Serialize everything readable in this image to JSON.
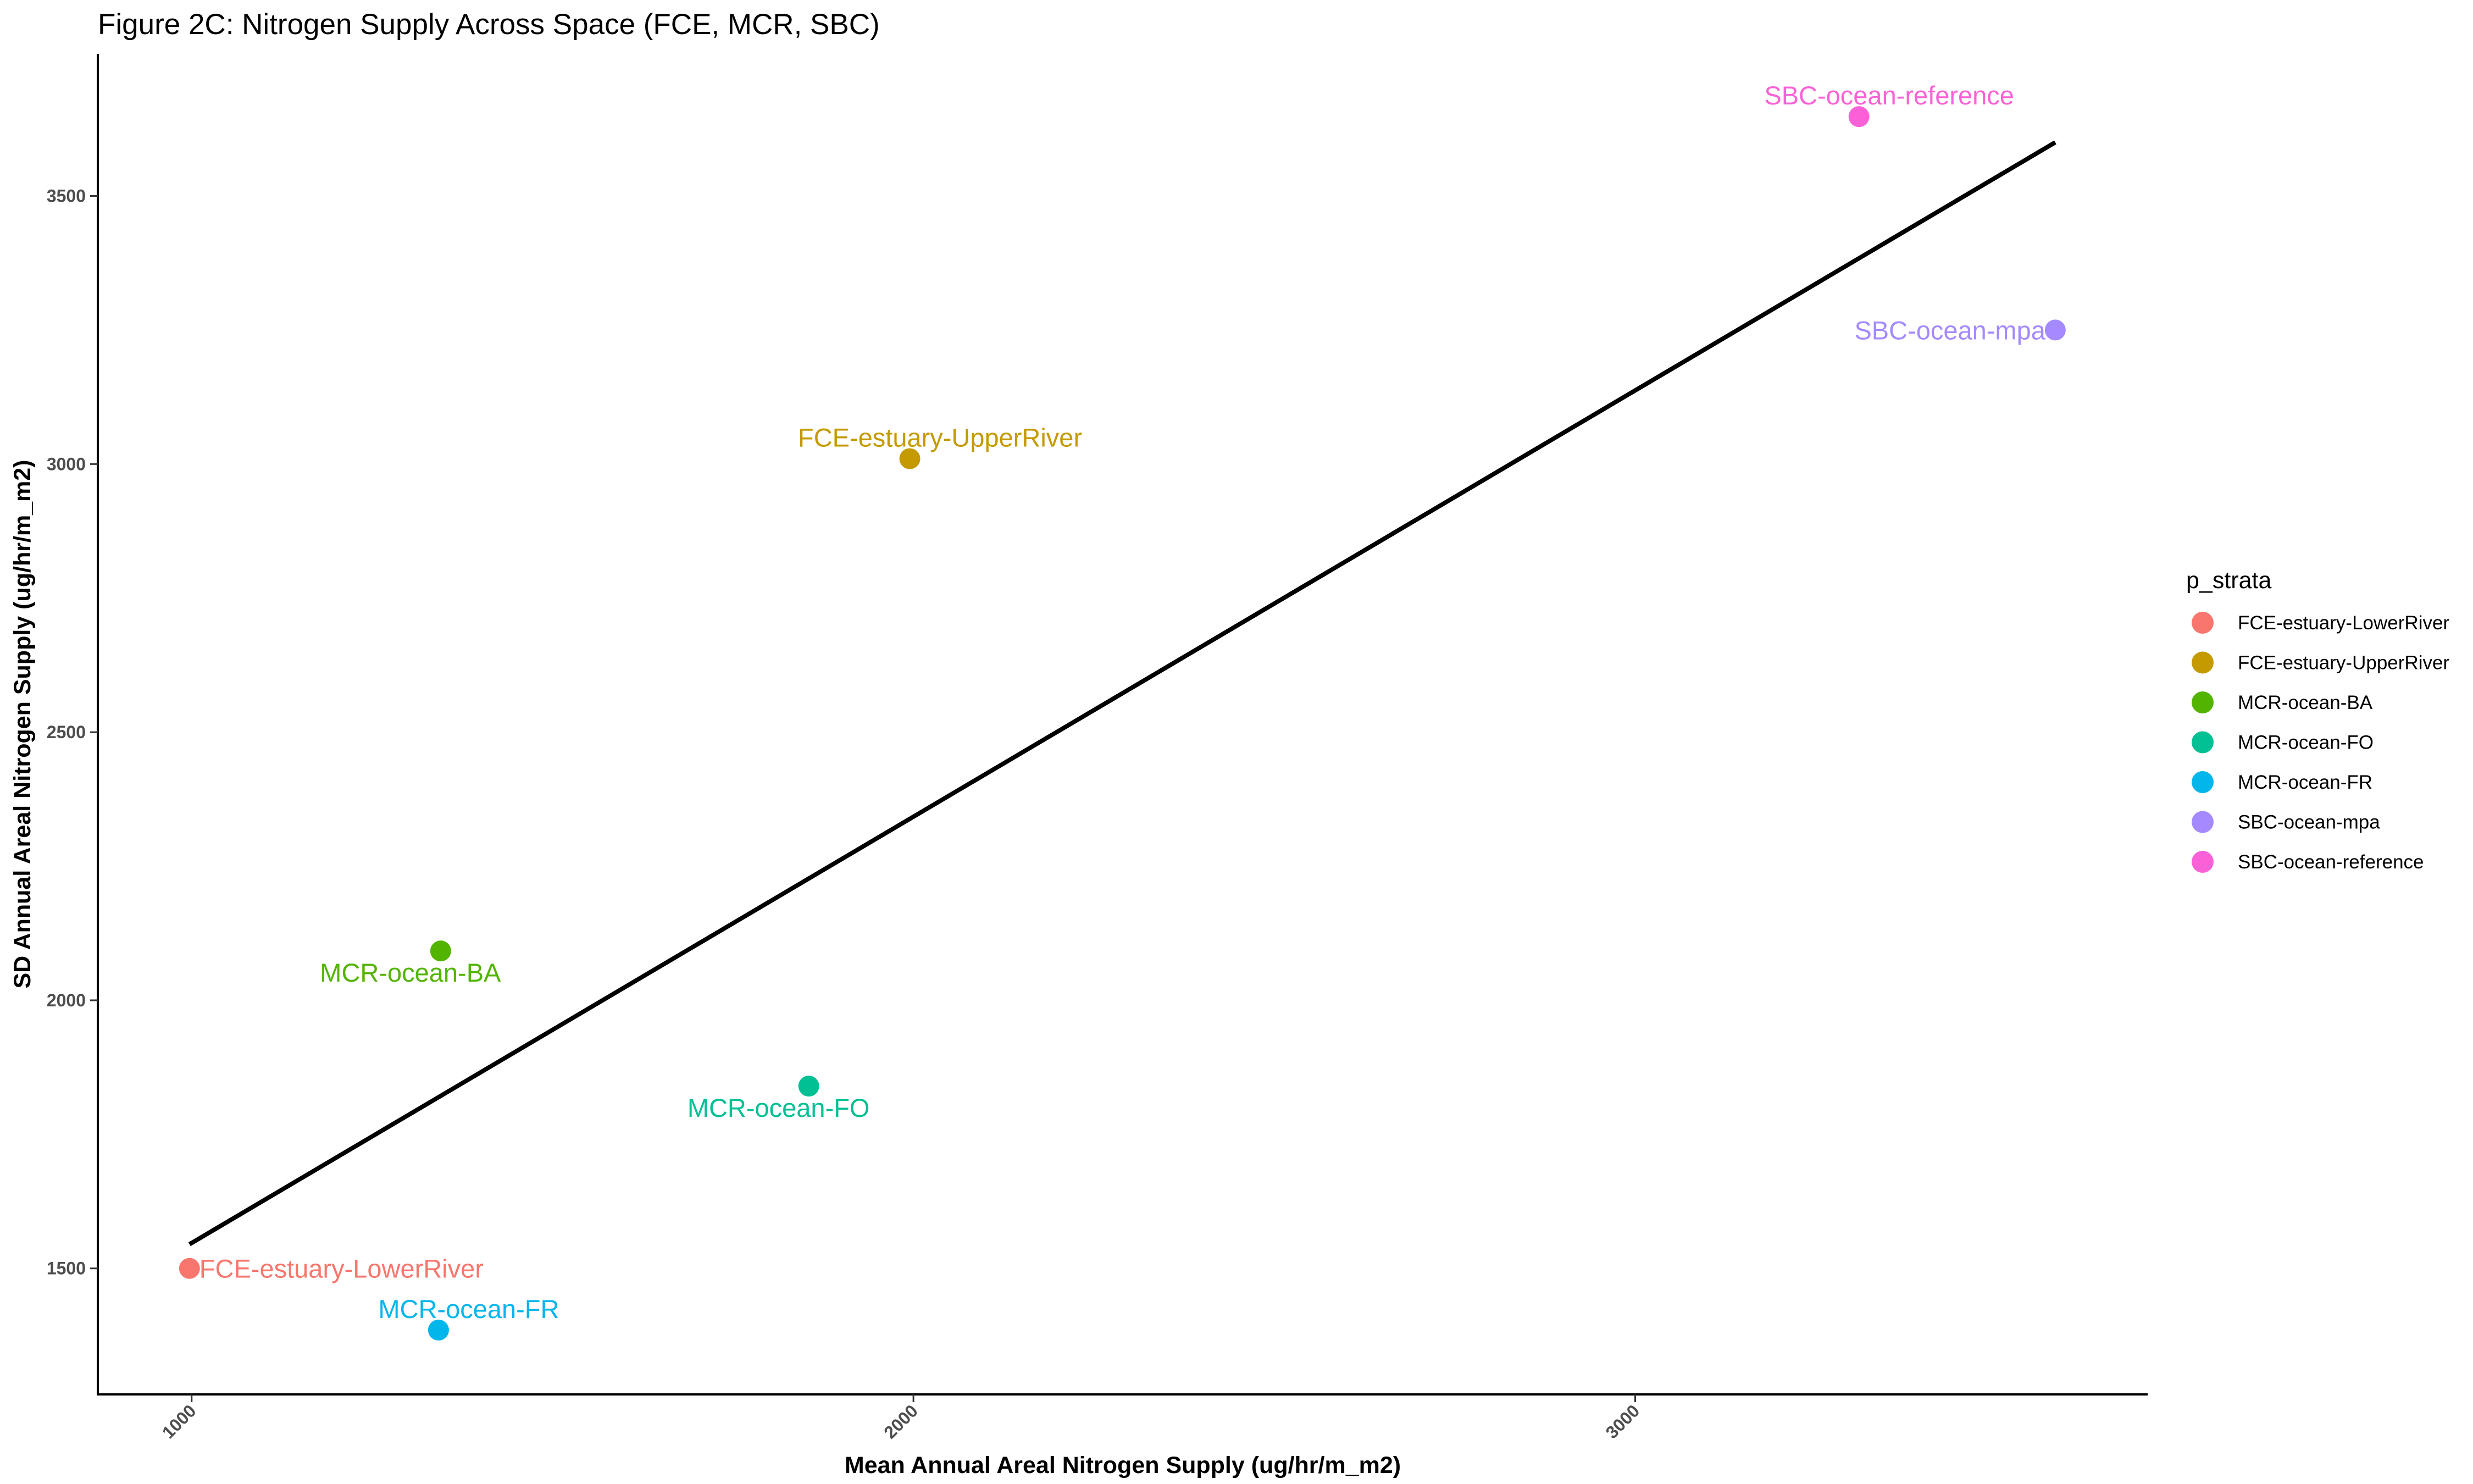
{
  "chart_data": {
    "type": "scatter",
    "title": "Figure 2C: Nitrogen Supply Across Space (FCE, MCR, SBC)",
    "xlabel": "Mean Annual Areal Nitrogen Supply (ug/hr/m_m2)",
    "ylabel": "SD Annual Areal Nitrogen Supply (ug/hr/m_m2)",
    "xlim": [
      870,
      3710
    ],
    "ylim": [
      1265,
      3765
    ],
    "x_ticks": [
      "1000",
      "2000",
      "3000"
    ],
    "y_ticks": [
      "1500",
      "2000",
      "2500",
      "3000",
      "3500"
    ],
    "grid": false,
    "legend_title": "p_strata",
    "legend_position": "right",
    "series": [
      {
        "name": "FCE-estuary-LowerRiver",
        "color": "#F8766D",
        "x": 997,
        "y": 1500,
        "label_side": "right"
      },
      {
        "name": "FCE-estuary-UpperRiver",
        "color": "#C49A00",
        "x": 1995,
        "y": 3010,
        "label_side": "above"
      },
      {
        "name": "MCR-ocean-BA",
        "color": "#53B400",
        "x": 1345,
        "y": 2092,
        "label_side": "below"
      },
      {
        "name": "MCR-ocean-FO",
        "color": "#00C094",
        "x": 1855,
        "y": 1840,
        "label_side": "below"
      },
      {
        "name": "MCR-ocean-FR",
        "color": "#00B6EB",
        "x": 1342,
        "y": 1385,
        "label_side": "above"
      },
      {
        "name": "SBC-ocean-mpa",
        "color": "#A58AFF",
        "x": 3582,
        "y": 3250,
        "label_side": "left"
      },
      {
        "name": "SBC-ocean-reference",
        "color": "#FB61D7",
        "x": 3310,
        "y": 3648,
        "label_side": "above"
      }
    ],
    "trend_line": {
      "color": "#000000",
      "points": [
        [
          997,
          1545
        ],
        [
          3582,
          3600
        ]
      ]
    }
  }
}
